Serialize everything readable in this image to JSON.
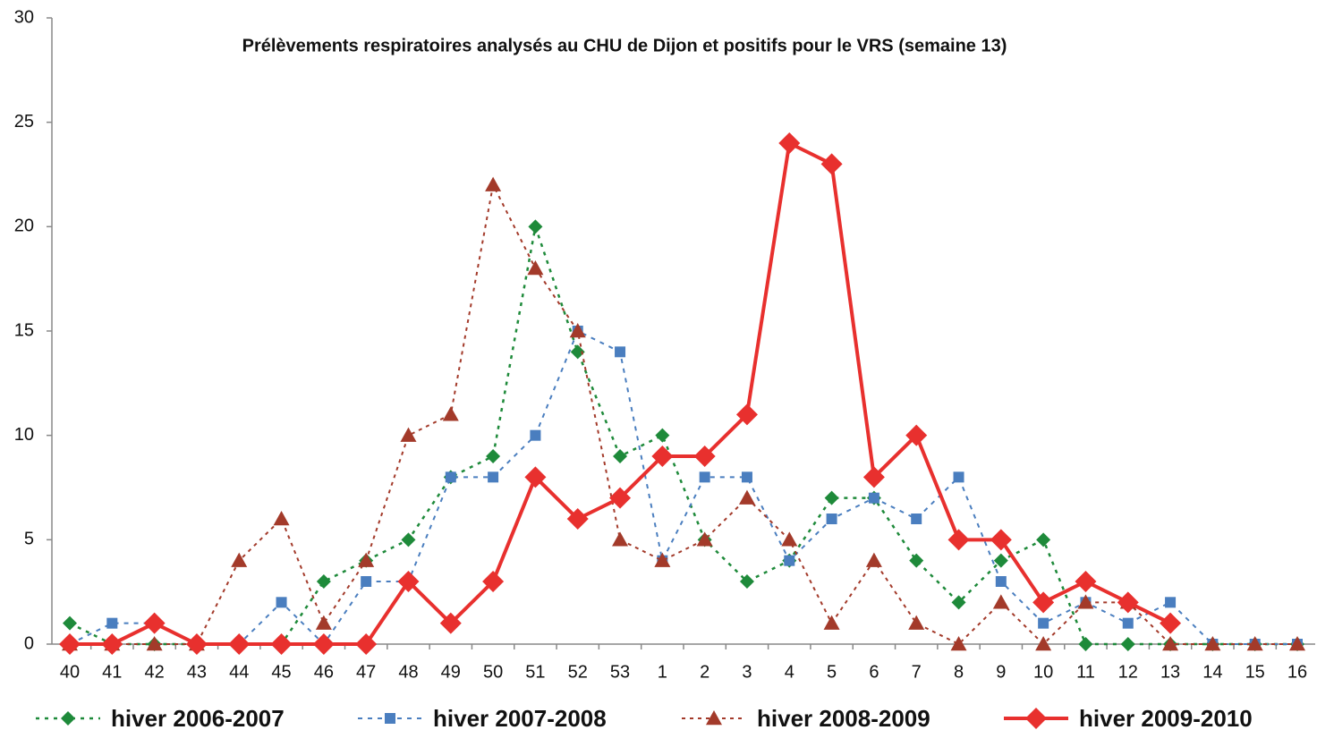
{
  "chart_data": {
    "type": "line",
    "title": "Prélèvements respiratoires analysés au CHU de Dijon et positifs pour le VRS (semaine 13)",
    "categories": [
      "40",
      "41",
      "42",
      "43",
      "44",
      "45",
      "46",
      "47",
      "48",
      "49",
      "50",
      "51",
      "52",
      "53",
      "1",
      "2",
      "3",
      "4",
      "5",
      "6",
      "7",
      "8",
      "9",
      "10",
      "11",
      "12",
      "13",
      "14",
      "15",
      "16"
    ],
    "ylim": [
      0,
      30
    ],
    "yticks": [
      0,
      5,
      10,
      15,
      20,
      25,
      30
    ],
    "grid": false,
    "legend": "bottom",
    "series": [
      {
        "name": "hiver 2006-2007",
        "color": "#1e8a3a",
        "values": [
          1,
          0,
          0,
          0,
          0,
          0,
          3,
          4,
          5,
          8,
          9,
          20,
          14,
          9,
          10,
          5,
          3,
          4,
          7,
          7,
          4,
          2,
          4,
          5,
          0,
          0,
          0,
          0,
          0,
          0
        ]
      },
      {
        "name": "hiver 2007-2008",
        "color": "#4a7ebf",
        "values": [
          0,
          1,
          1,
          0,
          0,
          2,
          0,
          3,
          3,
          8,
          8,
          10,
          15,
          14,
          4,
          8,
          8,
          4,
          6,
          7,
          6,
          8,
          3,
          1,
          2,
          1,
          2,
          0,
          0,
          0
        ]
      },
      {
        "name": "hiver 2008-2009",
        "color": "#a33a2a",
        "values": [
          0,
          0,
          0,
          0,
          4,
          6,
          1,
          4,
          10,
          11,
          22,
          18,
          15,
          5,
          4,
          5,
          7,
          5,
          1,
          4,
          1,
          0,
          2,
          0,
          2,
          2,
          0,
          0,
          0,
          0
        ]
      },
      {
        "name": "hiver 2009-2010",
        "color": "#e8302e",
        "values": [
          0,
          0,
          1,
          0,
          0,
          0,
          0,
          0,
          3,
          1,
          3,
          8,
          6,
          7,
          9,
          9,
          11,
          24,
          23,
          8,
          10,
          5,
          5,
          2,
          3,
          2,
          1,
          null,
          null,
          null
        ]
      }
    ]
  }
}
